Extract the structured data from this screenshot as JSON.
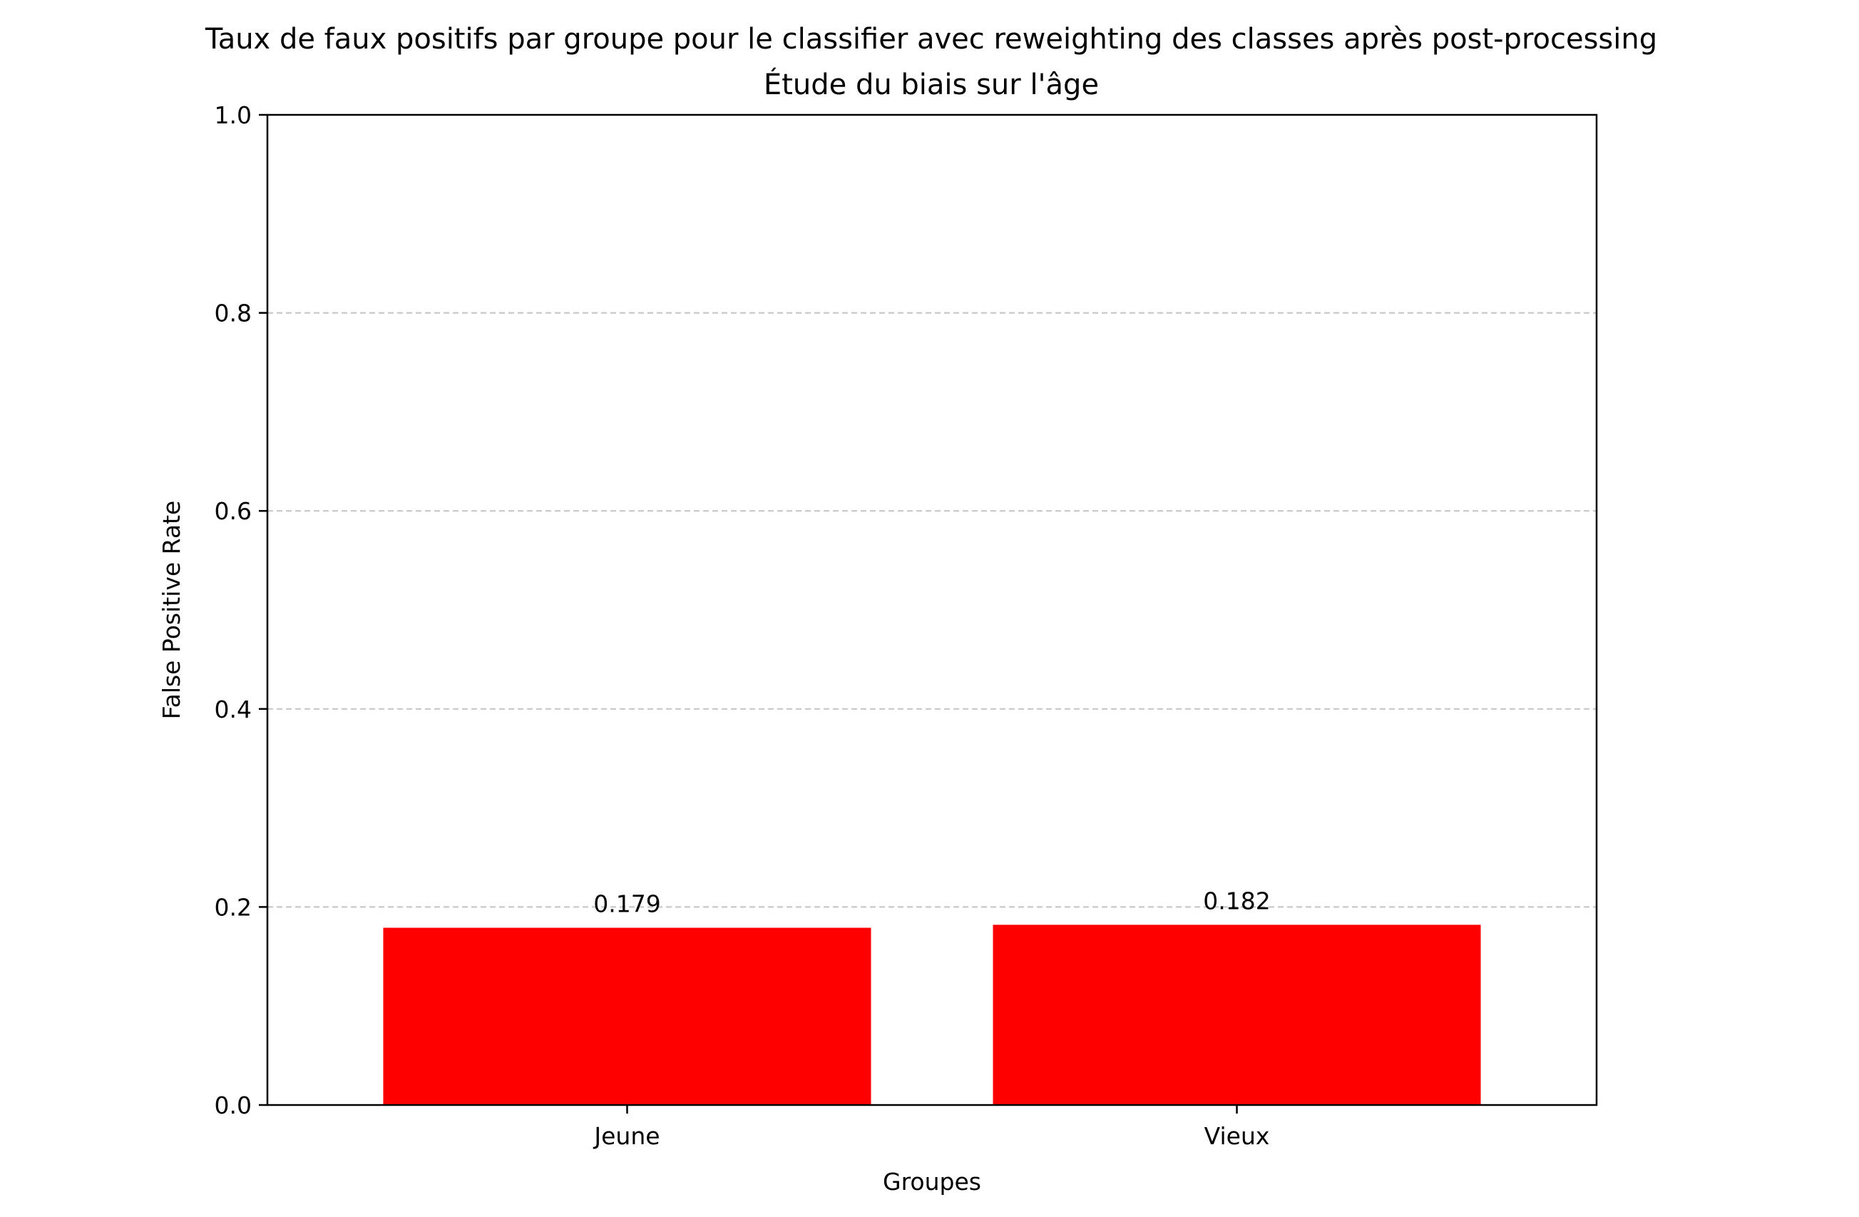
{
  "chart_data": {
    "type": "bar",
    "title": "Taux de faux positifs par groupe pour le classifier avec reweighting des classes après post-processing",
    "subtitle": "Étude du biais sur l'âge",
    "xlabel": "Groupes",
    "ylabel": "False Positive Rate",
    "categories": [
      "Jeune",
      "Vieux"
    ],
    "values": [
      0.179,
      0.182
    ],
    "data_labels": [
      "0.179",
      "0.182"
    ],
    "ylim": [
      0,
      1.0
    ],
    "yticks": [
      0.0,
      0.2,
      0.4,
      0.6,
      0.8,
      1.0
    ],
    "ytick_labels": [
      "0.0",
      "0.2",
      "0.4",
      "0.6",
      "0.8",
      "1.0"
    ],
    "grid": "horizontal dashed",
    "bar_color": "#ff0000",
    "grid_color": "#c8c8c8"
  }
}
